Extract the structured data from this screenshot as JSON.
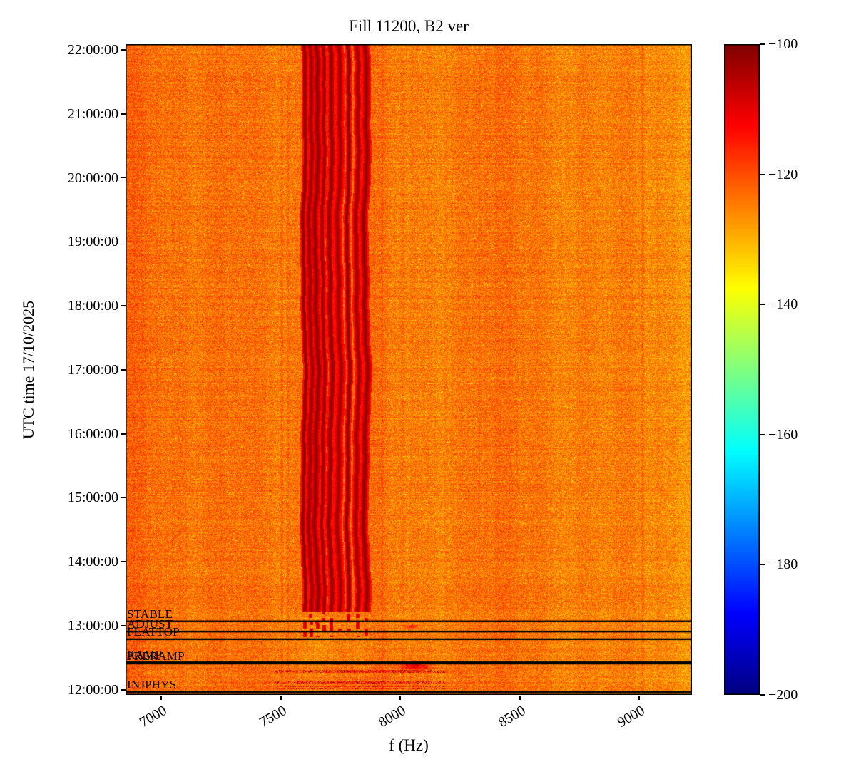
{
  "chart_data": {
    "type": "heatmap",
    "subtype": "spectrogram",
    "title": "Fill 11200, B2 ver",
    "xlabel": "f (Hz)",
    "ylabel": "UTC time 17/10/2025",
    "colormap": "jet",
    "clim_db": [
      -200,
      -100
    ],
    "x_range_hz": [
      6850,
      9220
    ],
    "y_range_hours": [
      11.92,
      22.09
    ],
    "x_ticks": [
      {
        "label": "7000",
        "hz": 7000
      },
      {
        "label": "7500",
        "hz": 7500
      },
      {
        "label": "8000",
        "hz": 8000
      },
      {
        "label": "8500",
        "hz": 8500
      },
      {
        "label": "9000",
        "hz": 9000
      }
    ],
    "y_ticks": [
      {
        "label": "22:00:00",
        "hour": 22
      },
      {
        "label": "21:00:00",
        "hour": 21
      },
      {
        "label": "20:00:00",
        "hour": 20
      },
      {
        "label": "19:00:00",
        "hour": 19
      },
      {
        "label": "18:00:00",
        "hour": 18
      },
      {
        "label": "17:00:00",
        "hour": 17
      },
      {
        "label": "16:00:00",
        "hour": 16
      },
      {
        "label": "15:00:00",
        "hour": 15
      },
      {
        "label": "14:00:00",
        "hour": 14
      },
      {
        "label": "13:00:00",
        "hour": 13
      },
      {
        "label": "12:00:00",
        "hour": 12
      }
    ],
    "colorbar": {
      "ticks": [
        {
          "label": "−100",
          "value": -100
        },
        {
          "label": "−120",
          "value": -120
        },
        {
          "label": "−140",
          "value": -140
        },
        {
          "label": "−160",
          "value": -160
        },
        {
          "label": "−180",
          "value": -180
        },
        {
          "label": "−200",
          "value": -200
        }
      ]
    },
    "background_level_db": -124,
    "band_level_db": -102,
    "bands_end_time_h": 13.22,
    "band_lines_hz": [
      7597,
      7622,
      7648,
      7676,
      7707,
      7742,
      7780,
      7818,
      7852
    ],
    "faint_lines_hz": [
      7505,
      7530,
      7890,
      7925,
      8010,
      8330,
      9015
    ],
    "injection_activity": {
      "time_range_h": [
        11.92,
        12.47
      ],
      "freq_range_hz": [
        7380,
        8370
      ]
    },
    "annotations": [
      {
        "label": "STABLE",
        "time_h": 13.07
      },
      {
        "label": "ADJUST",
        "time_h": 12.91
      },
      {
        "label": "FLATTOP",
        "time_h": 12.79
      },
      {
        "label": "PRERAMP",
        "time_h": 12.41
      },
      {
        "label": "RAMP",
        "time_h": 12.43
      },
      {
        "label": "INJPHYS",
        "time_h": 11.965
      }
    ]
  }
}
